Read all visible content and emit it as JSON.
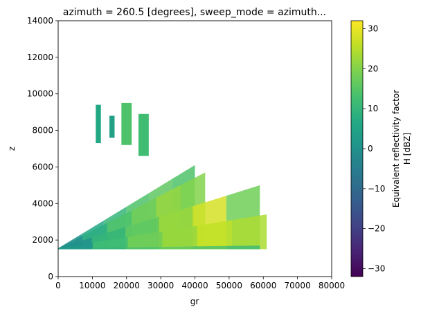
{
  "chart_data": {
    "type": "heatmap",
    "title": "azimuth = 260.5 [degrees], sweep_mode = azimuth...",
    "xlabel": "gr",
    "ylabel": "z",
    "xlim": [
      0,
      80000
    ],
    "ylim": [
      0,
      14000
    ],
    "x_ticks": [
      0,
      10000,
      20000,
      30000,
      40000,
      50000,
      60000,
      70000,
      80000
    ],
    "y_ticks": [
      0,
      2000,
      4000,
      6000,
      8000,
      10000,
      12000,
      14000
    ],
    "colorbar": {
      "label_line1": "Equivalent reflectivity factor",
      "label_line2": "H [dBZ]",
      "range": [
        -32,
        32
      ],
      "ticks": [
        -30,
        -20,
        -10,
        0,
        10,
        20,
        30
      ],
      "colormap": "viridis"
    },
    "sweeps": [
      {
        "x_end": 40000,
        "z_start": 1550,
        "z_end": 6100,
        "dbz": [
          0,
          6,
          10,
          14,
          16,
          14
        ]
      },
      {
        "x_end": 43000,
        "z_start": 1550,
        "z_end": 5700,
        "dbz": [
          0,
          8,
          14,
          18,
          22,
          20
        ]
      },
      {
        "x_end": 59000,
        "z_start": 1550,
        "z_end": 5000,
        "dbz": [
          0,
          10,
          16,
          22,
          28,
          18
        ]
      },
      {
        "x_end": 61000,
        "z_start": 1550,
        "z_end": 3400,
        "dbz": [
          2,
          12,
          18,
          22,
          26,
          24
        ]
      },
      {
        "x_end": 59000,
        "z_start": 1550,
        "z_end": 1700,
        "dbz": [
          4,
          10,
          14,
          16,
          14,
          12
        ]
      }
    ],
    "upper_cells": [
      {
        "x_range": [
          11000,
          12500
        ],
        "z_range": [
          7300,
          9400
        ],
        "dbz": 6
      },
      {
        "x_range": [
          15000,
          16500
        ],
        "z_range": [
          7600,
          8800
        ],
        "dbz": 4
      },
      {
        "x_range": [
          18500,
          21500
        ],
        "z_range": [
          7200,
          9500
        ],
        "dbz": 14
      },
      {
        "x_range": [
          23500,
          26500
        ],
        "z_range": [
          6600,
          8900
        ],
        "dbz": 12
      }
    ]
  }
}
